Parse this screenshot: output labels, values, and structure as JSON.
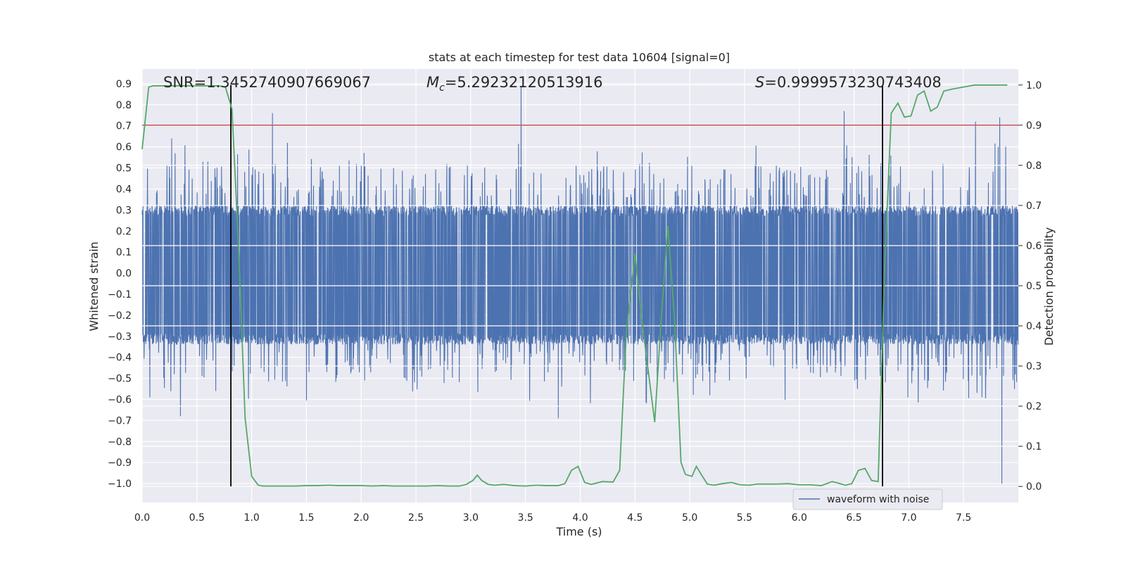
{
  "chart_data": {
    "type": "line",
    "title": "stats at each timestep for test data 10604 [signal=0]",
    "xlabel": "Time (s)",
    "ylabel_left": "Whitened strain",
    "ylabel_right": "Detection probability",
    "xlim": [
      0.0,
      8.0
    ],
    "ylim_left": [
      -1.09,
      0.97
    ],
    "ylim_right": [
      -0.04,
      1.04
    ],
    "xticks": [
      "0.0",
      "0.5",
      "1.0",
      "1.5",
      "2.0",
      "2.5",
      "3.0",
      "3.5",
      "4.0",
      "4.5",
      "5.0",
      "5.5",
      "6.0",
      "6.5",
      "7.0",
      "7.5"
    ],
    "xtick_values": [
      0.0,
      0.5,
      1.0,
      1.5,
      2.0,
      2.5,
      3.0,
      3.5,
      4.0,
      4.5,
      5.0,
      5.5,
      6.0,
      6.5,
      7.0,
      7.5
    ],
    "yticks_left": [
      "0.9",
      "0.8",
      "0.7",
      "0.6",
      "0.5",
      "0.4",
      "0.3",
      "0.2",
      "0.1",
      "0.0",
      "−0.1",
      "−0.2",
      "−0.3",
      "−0.4",
      "−0.5",
      "−0.6",
      "−0.7",
      "−0.8",
      "−0.9",
      "−1.0"
    ],
    "ytick_values_left": [
      0.9,
      0.8,
      0.7,
      0.6,
      0.5,
      0.4,
      0.3,
      0.2,
      0.1,
      0.0,
      -0.1,
      -0.2,
      -0.3,
      -0.4,
      -0.5,
      -0.6,
      -0.7,
      -0.8,
      -0.9,
      -1.0
    ],
    "yticks_right": [
      "1.0",
      "0.9",
      "0.8",
      "0.7",
      "0.6",
      "0.5",
      "0.4",
      "0.3",
      "0.2",
      "0.1",
      "0.0"
    ],
    "ytick_values_right": [
      1.0,
      0.9,
      0.8,
      0.7,
      0.6,
      0.5,
      0.4,
      0.3,
      0.2,
      0.1,
      0.0
    ],
    "annotations": {
      "snr": "SNR=1.3452740907669067",
      "mc_symbol": "M",
      "mc_sub": "c",
      "mc_value": "=5.29232120513916",
      "s_symbol": "S",
      "s_value": "=0.9999573230743408"
    },
    "legend": {
      "label": "waveform with noise",
      "location": "lower-right"
    },
    "threshold_probability": 0.9,
    "vertical_markers_s": [
      0.81,
      6.76
    ],
    "waveform": {
      "name": "waveform with noise",
      "color": "#4c72b0",
      "t_start": 0.0,
      "t_end": 8.0,
      "typical_upper": 0.32,
      "typical_lower": -0.34,
      "noise_seed": 10604,
      "spikes": [
        {
          "t": 0.35,
          "v": -0.68
        },
        {
          "t": 0.27,
          "v": 0.64
        },
        {
          "t": 1.19,
          "v": 0.76
        },
        {
          "t": 3.46,
          "v": 0.89
        },
        {
          "t": 3.8,
          "v": -0.69
        },
        {
          "t": 6.41,
          "v": 0.77
        },
        {
          "t": 7.61,
          "v": 0.72
        },
        {
          "t": 7.83,
          "v": 0.74
        },
        {
          "t": 7.85,
          "v": -1.0
        },
        {
          "t": 0.07,
          "v": -0.59
        }
      ]
    },
    "probability": {
      "color": "#55a868",
      "t": [
        0.0,
        0.06,
        0.1,
        0.2,
        0.3,
        0.4,
        0.5,
        0.6,
        0.7,
        0.76,
        0.82,
        0.88,
        0.94,
        1.0,
        1.06,
        1.1,
        1.2,
        1.3,
        1.4,
        1.5,
        1.6,
        1.7,
        1.8,
        1.9,
        2.0,
        2.1,
        2.2,
        2.3,
        2.4,
        2.5,
        2.6,
        2.7,
        2.8,
        2.9,
        2.96,
        3.02,
        3.06,
        3.1,
        3.16,
        3.22,
        3.3,
        3.4,
        3.5,
        3.6,
        3.7,
        3.8,
        3.86,
        3.92,
        3.98,
        4.04,
        4.1,
        4.2,
        4.3,
        4.36,
        4.42,
        4.5,
        4.56,
        4.62,
        4.68,
        4.74,
        4.8,
        4.86,
        4.92,
        4.96,
        5.02,
        5.06,
        5.1,
        5.16,
        5.22,
        5.3,
        5.38,
        5.46,
        5.54,
        5.62,
        5.7,
        5.8,
        5.9,
        6.0,
        6.1,
        6.2,
        6.3,
        6.36,
        6.42,
        6.48,
        6.54,
        6.6,
        6.66,
        6.72,
        6.78,
        6.84,
        6.9,
        6.96,
        7.02,
        7.08,
        7.14,
        7.2,
        7.26,
        7.32,
        7.4,
        7.5,
        7.6,
        7.7,
        7.8,
        7.9
      ],
      "p": [
        0.84,
        0.995,
        0.998,
        0.998,
        0.998,
        0.998,
        0.998,
        0.998,
        0.998,
        0.995,
        0.94,
        0.6,
        0.17,
        0.025,
        0.003,
        0.001,
        0.001,
        0.001,
        0.001,
        0.002,
        0.002,
        0.003,
        0.002,
        0.002,
        0.002,
        0.001,
        0.002,
        0.001,
        0.001,
        0.001,
        0.001,
        0.002,
        0.001,
        0.001,
        0.005,
        0.015,
        0.028,
        0.015,
        0.005,
        0.003,
        0.005,
        0.002,
        0.001,
        0.003,
        0.002,
        0.002,
        0.007,
        0.04,
        0.05,
        0.01,
        0.005,
        0.012,
        0.011,
        0.04,
        0.38,
        0.58,
        0.42,
        0.29,
        0.16,
        0.42,
        0.65,
        0.42,
        0.06,
        0.03,
        0.025,
        0.05,
        0.032,
        0.006,
        0.003,
        0.007,
        0.01,
        0.004,
        0.003,
        0.006,
        0.006,
        0.006,
        0.007,
        0.004,
        0.004,
        0.002,
        0.012,
        0.008,
        0.003,
        0.007,
        0.04,
        0.045,
        0.015,
        0.012,
        0.55,
        0.93,
        0.955,
        0.92,
        0.923,
        0.975,
        0.985,
        0.935,
        0.945,
        0.985,
        0.99,
        0.995,
        1.0,
        1.0,
        1.0,
        1.0
      ]
    }
  }
}
